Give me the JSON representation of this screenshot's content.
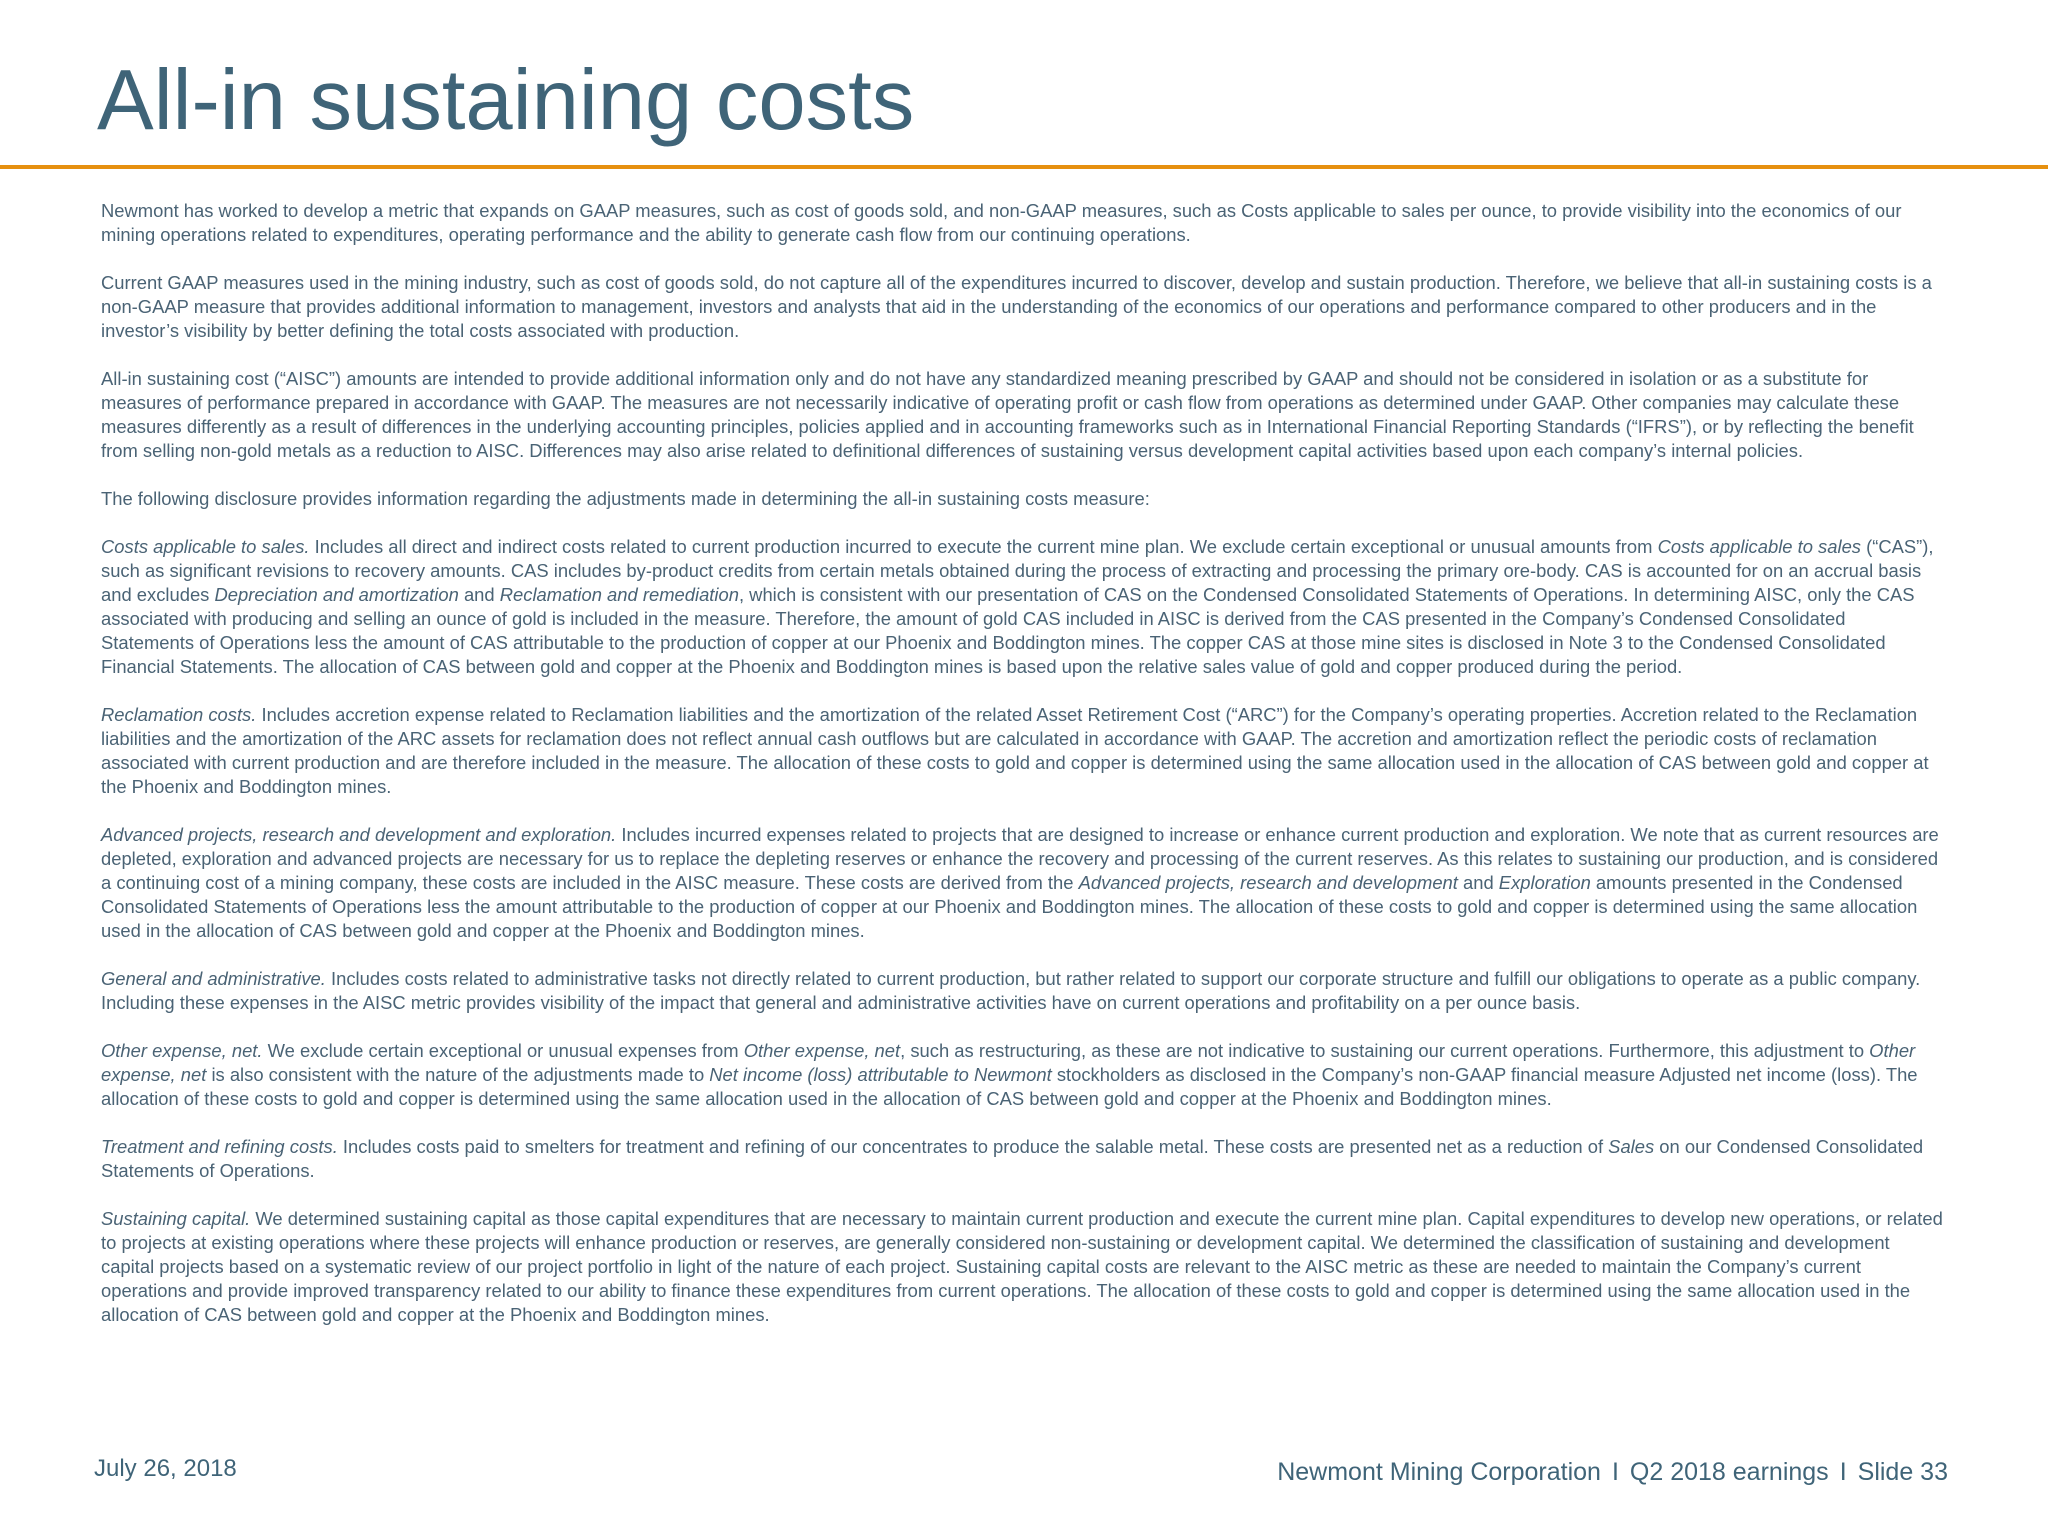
{
  "slide": {
    "title": "All-in sustaining costs"
  },
  "body": {
    "p1": "Newmont has worked to develop a metric that expands on GAAP measures, such as cost of goods sold, and non-GAAP measures, such as Costs applicable to sales per ounce, to provide visibility into the economics of our mining operations related to expenditures, operating performance and the ability to generate cash flow from our continuing operations.",
    "p2": "Current GAAP measures used in the mining industry, such as cost of goods sold, do not capture all of the expenditures incurred to discover, develop and sustain production. Therefore, we believe that all-in sustaining costs is a non-GAAP measure that provides additional information to management, investors and analysts that aid in the understanding of the economics of our operations and performance compared to other producers and in the investor’s visibility by better defining the total costs associated with production.",
    "p3": "All-in sustaining cost (“AISC”) amounts are intended to provide additional information only and do not have any standardized meaning prescribed by GAAP and should not be considered in isolation or as a substitute for measures of performance prepared in accordance with GAAP. The measures are not necessarily indicative of operating profit or cash flow from operations as determined under GAAP. Other companies may calculate these measures differently as a result of differences in the underlying accounting principles, policies applied and in accounting frameworks such as in International Financial Reporting Standards (“IFRS”), or by reflecting the benefit from selling non-gold metals as a reduction to AISC. Differences may also arise related to definitional differences of sustaining versus development capital activities based upon each company’s internal policies.",
    "p4": "The following disclosure provides information regarding the adjustments made in determining the all-in sustaining costs measure:",
    "cas": {
      "heading": "Costs applicable to sales.",
      "t1": " Includes all direct and indirect costs related to current production incurred to execute the current mine plan. We exclude certain exceptional or unusual amounts from ",
      "i1": "Costs applicable to sales",
      "t2": " (“CAS”), such as significant revisions to recovery amounts. CAS includes by-product credits from certain metals obtained during the process of extracting and processing the primary ore-body. CAS is accounted for on an accrual basis and excludes ",
      "i2": "Depreciation and amortization",
      "t3": " and ",
      "i3": "Reclamation and remediation",
      "t4": ", which is consistent with our presentation of CAS on the Condensed Consolidated Statements of Operations. In determining AISC, only the CAS associated with producing and selling an ounce of gold is included in the measure. Therefore, the amount of gold CAS included in AISC is derived from the CAS presented in the Company’s Condensed Consolidated Statements of Operations less the amount of CAS attributable to the production of copper at our Phoenix and Boddington mines. The copper CAS at those mine sites is disclosed in Note 3 to the Condensed Consolidated Financial Statements. The allocation of CAS between gold and copper at the Phoenix and Boddington mines is based upon the relative sales value of gold and copper produced during the period."
    },
    "reclamation": {
      "heading": "Reclamation costs.",
      "t1": " Includes accretion expense related to Reclamation liabilities and the amortization of the related Asset Retirement Cost (“ARC”) for the Company’s operating properties. Accretion related to the Reclamation liabilities and the amortization of the ARC assets for reclamation does not reflect annual cash outflows but are calculated in accordance with GAAP. The accretion and amortization reflect the periodic costs of reclamation associated with current production and are therefore included in the measure. The allocation of these costs to gold and copper is determined using the same allocation used in the allocation of CAS between gold and copper at the Phoenix and Boddington mines."
    },
    "advanced": {
      "heading": "Advanced projects, research and development and exploration.",
      "t1": " Includes incurred expenses related to projects that are designed to increase or enhance current production and exploration. We note that as current resources are depleted, exploration and advanced projects are necessary for us to replace the depleting reserves or enhance the recovery and processing of the current reserves. As this relates to sustaining our production, and is considered a continuing cost of a mining company, these costs are included in the AISC measure. These costs are derived from the ",
      "i1": "Advanced projects, research and development",
      "t2": " and ",
      "i2": "Exploration",
      "t3": " amounts presented in the Condensed Consolidated Statements of Operations less the amount attributable to the production of copper at our Phoenix and Boddington mines. The allocation of these costs to gold and copper is determined using the same allocation used in the allocation of CAS between gold and copper at the Phoenix and Boddington mines."
    },
    "ga": {
      "heading": "General and administrative.",
      "t1": " Includes costs related to administrative tasks not directly related to current production, but rather related to support our corporate structure and fulfill our obligations to operate as a public company. Including these expenses in the AISC metric provides visibility of the impact that general and administrative activities have on current operations and profitability on a per ounce basis."
    },
    "other": {
      "heading": "Other expense, net.",
      "t1": " We exclude certain exceptional or unusual expenses from ",
      "i1": "Other expense, net",
      "t2": ", such as restructuring, as these are not indicative to sustaining our current operations. Furthermore, this adjustment to ",
      "i2": "Other expense, net",
      "t3": " is also consistent with the nature of the adjustments made to ",
      "i3": "Net income (loss) attributable to Newmont",
      "t4": " stockholders as disclosed in the Company’s non-GAAP financial measure Adjusted net income (loss). The allocation of these costs to gold and copper is determined using the same allocation used in the allocation of CAS between gold and copper at the Phoenix and Boddington mines."
    },
    "treatment": {
      "heading": "Treatment and refining costs.",
      "t1": " Includes costs paid to smelters for treatment and refining of our concentrates to produce the salable metal. These costs are presented net as a reduction of ",
      "i1": "Sales",
      "t2": " on our Condensed Consolidated Statements of Operations."
    },
    "sustaining": {
      "heading": "Sustaining capital.",
      "t1": " We determined sustaining capital as those capital expenditures that are necessary to maintain current production and execute the current mine plan. Capital expenditures to develop new operations, or related to projects at existing operations where these projects will enhance production or reserves, are generally considered non-sustaining or development capital. We determined the classification of sustaining and development capital projects based on a systematic review of our project portfolio in light of the nature of each project. Sustaining capital costs are relevant to the AISC metric as these are needed to maintain the Company’s current operations and provide improved transparency related to our ability to finance these expenditures from current operations. The allocation of these costs to gold and copper is determined using the same allocation used in the allocation of CAS between gold and copper at the Phoenix and Boddington mines."
    }
  },
  "footer": {
    "date": "July 26, 2018",
    "company": "Newmont Mining Corporation",
    "separator": "I",
    "event": "Q2 2018 earnings",
    "slide": "Slide 33"
  },
  "colors": {
    "title": "#3f6478",
    "body_text": "#4a6375",
    "rule": "#e6900f"
  }
}
